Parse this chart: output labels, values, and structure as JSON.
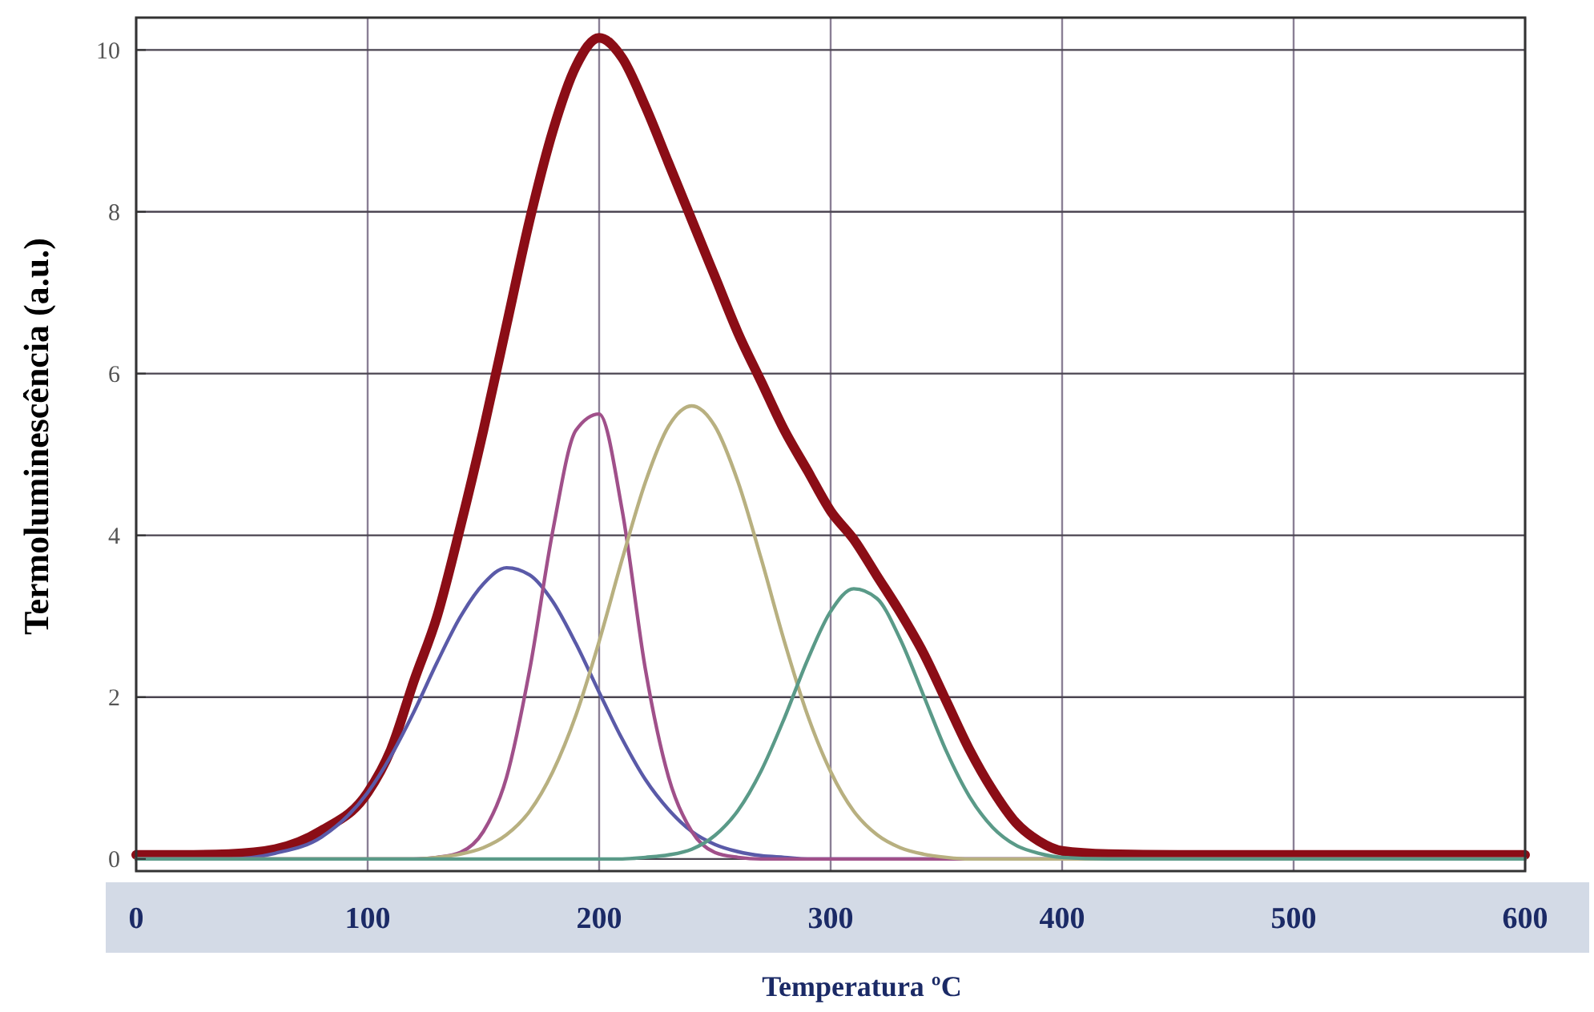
{
  "chart_data": {
    "type": "line",
    "xlabel": "Temperatura  ºC",
    "ylabel": "Termoluminescência  (a.u.)",
    "x": [
      0,
      20,
      40,
      60,
      80,
      100,
      110,
      120,
      130,
      140,
      150,
      160,
      170,
      180,
      190,
      200,
      210,
      220,
      230,
      240,
      250,
      260,
      270,
      280,
      290,
      300,
      310,
      320,
      330,
      340,
      350,
      360,
      370,
      380,
      390,
      400,
      420,
      450,
      500,
      550,
      600
    ],
    "series": [
      {
        "color": "#8b0d16",
        "values": [
          0.05,
          0.05,
          0.06,
          0.12,
          0.35,
          0.82,
          1.35,
          2.2,
          3.0,
          4.1,
          5.3,
          6.6,
          7.9,
          9.0,
          9.8,
          10.15,
          9.9,
          9.3,
          8.6,
          7.9,
          7.2,
          6.5,
          5.9,
          5.3,
          4.8,
          4.3,
          3.95,
          3.5,
          3.05,
          2.55,
          1.95,
          1.35,
          0.85,
          0.45,
          0.22,
          0.1,
          0.06,
          0.05,
          0.05,
          0.05,
          0.05
        ]
      },
      {
        "color": "#5a5aa8",
        "values": [
          0,
          0,
          0,
          0.07,
          0.27,
          0.82,
          1.27,
          1.82,
          2.43,
          2.99,
          3.4,
          3.6,
          3.51,
          3.18,
          2.66,
          2.06,
          1.48,
          0.98,
          0.61,
          0.34,
          0.18,
          0.09,
          0.04,
          0.02,
          0,
          0,
          0,
          0,
          0,
          0,
          0,
          0,
          0,
          0,
          0,
          0,
          null,
          null,
          null,
          null,
          null
        ]
      },
      {
        "color": "#a0508a",
        "values": [
          0,
          0,
          0,
          0,
          0,
          0,
          0,
          0,
          0.02,
          0.08,
          0.34,
          1.01,
          2.34,
          4.06,
          5.3,
          5.5,
          4.3,
          2.34,
          1.01,
          0.34,
          0.08,
          0.02,
          0,
          0,
          0,
          0,
          0,
          0,
          0,
          0,
          0,
          0,
          0,
          0,
          0,
          0,
          0,
          0,
          0,
          0,
          0
        ]
      },
      {
        "color": "#b8b080",
        "values": [
          0,
          0,
          0,
          0,
          0,
          0,
          0,
          0,
          0.02,
          0.06,
          0.14,
          0.3,
          0.59,
          1.08,
          1.78,
          2.69,
          3.71,
          4.66,
          5.35,
          5.6,
          5.35,
          4.66,
          3.71,
          2.69,
          1.78,
          1.08,
          0.59,
          0.3,
          0.14,
          0.06,
          0.02,
          0,
          0,
          0,
          0,
          0,
          0,
          0,
          0,
          0,
          0
        ]
      },
      {
        "color": "#5a9a88",
        "values": [
          0,
          0,
          0,
          0,
          0,
          0,
          0,
          0,
          0,
          0,
          0,
          0,
          0,
          0,
          0,
          0,
          0,
          0.02,
          0.05,
          0.12,
          0.29,
          0.6,
          1.09,
          1.74,
          2.46,
          3.06,
          3.34,
          3.22,
          2.72,
          2.03,
          1.33,
          0.77,
          0.39,
          0.17,
          0.07,
          0.02,
          0,
          0,
          0,
          0,
          0
        ]
      }
    ],
    "xlim": [
      0,
      600
    ],
    "xticks": [
      0,
      100,
      200,
      300,
      400,
      500,
      600
    ],
    "ylim": [
      -0.15,
      10.4
    ],
    "yticks": [
      0,
      2,
      4,
      6,
      8,
      10
    ],
    "grid": true,
    "marker": "none",
    "line_style": "solid"
  }
}
